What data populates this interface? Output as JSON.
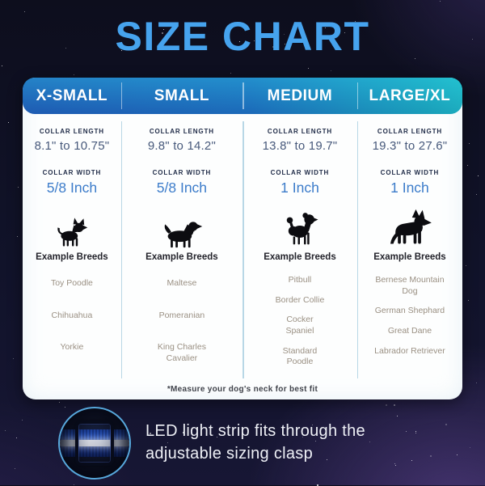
{
  "title": "SIZE CHART",
  "colors": {
    "title_blue": "#46a3ee",
    "header_gradient_left": "#2163be",
    "header_gradient_right": "#1fbcca",
    "collar_width_blue": "#3c7cca",
    "breed_text": "#9a9083",
    "clasp_ring_blue": "#57a8dc"
  },
  "size_chart": {
    "labels": {
      "collar_length": "COLLAR LENGTH",
      "collar_width": "COLLAR WIDTH",
      "example_breeds": "Example Breeds"
    },
    "columns": [
      {
        "size": "X-SMALL",
        "collar_length": "8.1\" to 10.75\"",
        "collar_width": "5/8 Inch",
        "icon": "chihuahua-icon",
        "breeds": [
          "Toy Poodle",
          "Chihuahua",
          "Yorkie"
        ]
      },
      {
        "size": "SMALL",
        "collar_length": "9.8\" to 14.2\"",
        "collar_width": "5/8 Inch",
        "icon": "cavalier-spaniel-icon",
        "breeds": [
          "Maltese",
          "Pomeranian",
          "King Charles Cavalier"
        ]
      },
      {
        "size": "MEDIUM",
        "collar_length": "13.8\" to 19.7\"",
        "collar_width": "1 Inch",
        "icon": "poodle-icon",
        "breeds": [
          "Pitbull",
          "Border Collie",
          "Cocker Spaniel",
          "Standard Poodle"
        ]
      },
      {
        "size": "LARGE/XL",
        "collar_length": "19.3\" to 27.6\"",
        "collar_width": "1 Inch",
        "icon": "german-shepherd-icon",
        "breeds": [
          "Bernese Mountain Dog",
          "German Shephard",
          "Great Dane",
          "Labrador Retriever"
        ]
      }
    ],
    "footnote": "*Measure your dog's neck for best fit"
  },
  "led_callout": {
    "text": "LED light strip fits through the adjustable sizing clasp",
    "image": "led-collar-clasp-closeup"
  },
  "chart_data": {
    "type": "table",
    "title": "SIZE CHART",
    "categories": [
      "X-SMALL",
      "SMALL",
      "MEDIUM",
      "LARGE/XL"
    ],
    "rows": [
      {
        "label": "Collar Length",
        "values": [
          "8.1\" to 10.75\"",
          "9.8\" to 14.2\"",
          "13.8\" to 19.7\"",
          "19.3\" to 27.6\""
        ]
      },
      {
        "label": "Collar Width",
        "values": [
          "5/8 Inch",
          "5/8 Inch",
          "1 Inch",
          "1 Inch"
        ]
      },
      {
        "label": "Example Breeds",
        "values": [
          [
            "Toy Poodle",
            "Chihuahua",
            "Yorkie"
          ],
          [
            "Maltese",
            "Pomeranian",
            "King Charles Cavalier"
          ],
          [
            "Pitbull",
            "Border Collie",
            "Cocker Spaniel",
            "Standard Poodle"
          ],
          [
            "Bernese Mountain Dog",
            "German Shephard",
            "Great Dane",
            "Labrador Retriever"
          ]
        ]
      }
    ],
    "footnote": "*Measure your dog's neck for best fit"
  }
}
